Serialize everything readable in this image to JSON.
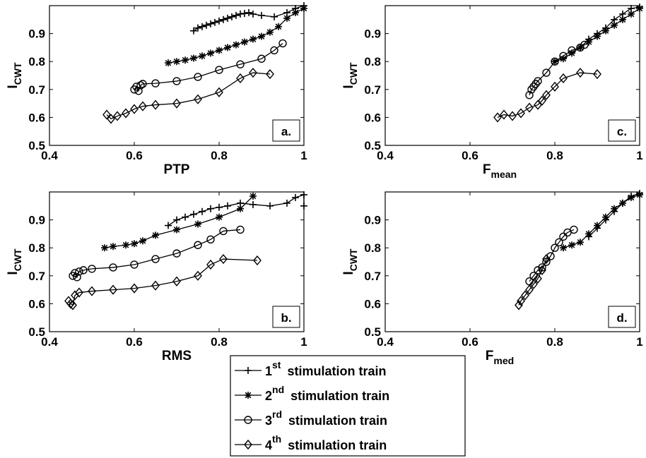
{
  "chart_data": [
    {
      "type": "line",
      "panel_label": "a.",
      "xlabel": "PTP",
      "xlabel_sub": "",
      "ylabel": "I",
      "ylabel_sub": "CWT",
      "xlim": [
        0.4,
        1.0
      ],
      "ylim": [
        0.5,
        1.0
      ],
      "xticks": [
        "0.4",
        "0.6",
        "0.8",
        "1"
      ],
      "yticks": [
        "0.5",
        "0.6",
        "0.7",
        "0.8",
        "0.9"
      ],
      "grid": false,
      "series": [
        {
          "name": "1st stimulation train",
          "marker": "plus",
          "x": [
            0.74,
            0.75,
            0.76,
            0.77,
            0.78,
            0.79,
            0.8,
            0.81,
            0.82,
            0.83,
            0.84,
            0.85,
            0.86,
            0.87,
            0.88,
            0.9,
            0.93,
            0.96,
            0.98,
            1.0
          ],
          "y": [
            0.91,
            0.92,
            0.925,
            0.93,
            0.935,
            0.94,
            0.945,
            0.95,
            0.955,
            0.96,
            0.965,
            0.97,
            0.972,
            0.975,
            0.97,
            0.965,
            0.96,
            0.975,
            0.99,
            1.0
          ]
        },
        {
          "name": "2nd stimulation train",
          "marker": "asterisk",
          "x": [
            0.68,
            0.7,
            0.72,
            0.74,
            0.76,
            0.78,
            0.8,
            0.82,
            0.84,
            0.86,
            0.88,
            0.9,
            0.92,
            0.94,
            0.96,
            0.98,
            1.0
          ],
          "y": [
            0.795,
            0.8,
            0.805,
            0.812,
            0.82,
            0.83,
            0.84,
            0.85,
            0.86,
            0.87,
            0.88,
            0.89,
            0.905,
            0.925,
            0.955,
            0.975,
            0.99
          ]
        },
        {
          "name": "3rd stimulation train",
          "marker": "circle",
          "x": [
            0.6,
            0.605,
            0.61,
            0.615,
            0.62,
            0.65,
            0.7,
            0.75,
            0.8,
            0.85,
            0.9,
            0.93,
            0.95
          ],
          "y": [
            0.7,
            0.71,
            0.695,
            0.715,
            0.72,
            0.722,
            0.73,
            0.745,
            0.77,
            0.79,
            0.81,
            0.84,
            0.865
          ]
        },
        {
          "name": "4th stimulation train",
          "marker": "diamond",
          "x": [
            0.535,
            0.545,
            0.56,
            0.58,
            0.6,
            0.62,
            0.65,
            0.7,
            0.75,
            0.8,
            0.85,
            0.88,
            0.92
          ],
          "y": [
            0.61,
            0.595,
            0.605,
            0.615,
            0.63,
            0.64,
            0.645,
            0.65,
            0.665,
            0.69,
            0.74,
            0.76,
            0.755
          ]
        }
      ]
    },
    {
      "type": "line",
      "panel_label": "c.",
      "xlabel": "F",
      "xlabel_sub": "mean",
      "ylabel": "I",
      "ylabel_sub": "CWT",
      "xlim": [
        0.4,
        1.0
      ],
      "ylim": [
        0.5,
        1.0
      ],
      "xticks": [
        "0.4",
        "0.6",
        "0.8",
        "1"
      ],
      "yticks": [
        "0.5",
        "0.6",
        "0.7",
        "0.8",
        "0.9"
      ],
      "grid": false,
      "series": [
        {
          "name": "1st stimulation train",
          "marker": "plus",
          "x": [
            0.86,
            0.88,
            0.9,
            0.92,
            0.94,
            0.96,
            0.98,
            1.0
          ],
          "y": [
            0.85,
            0.88,
            0.9,
            0.92,
            0.95,
            0.97,
            0.99,
            0.995
          ]
        },
        {
          "name": "2nd stimulation train",
          "marker": "asterisk",
          "x": [
            0.8,
            0.82,
            0.84,
            0.86,
            0.88,
            0.9,
            0.92,
            0.94,
            0.96,
            0.98,
            1.0
          ],
          "y": [
            0.8,
            0.81,
            0.83,
            0.85,
            0.87,
            0.89,
            0.91,
            0.93,
            0.95,
            0.97,
            0.99
          ]
        },
        {
          "name": "3rd stimulation train",
          "marker": "circle",
          "x": [
            0.74,
            0.745,
            0.75,
            0.755,
            0.76,
            0.78,
            0.8,
            0.82,
            0.84,
            0.86,
            0.87
          ],
          "y": [
            0.68,
            0.7,
            0.71,
            0.72,
            0.73,
            0.76,
            0.8,
            0.82,
            0.84,
            0.85,
            0.86
          ]
        },
        {
          "name": "4th stimulation train",
          "marker": "diamond",
          "x": [
            0.665,
            0.68,
            0.7,
            0.72,
            0.74,
            0.76,
            0.77,
            0.78,
            0.8,
            0.82,
            0.86,
            0.9
          ],
          "y": [
            0.6,
            0.61,
            0.605,
            0.615,
            0.635,
            0.645,
            0.66,
            0.68,
            0.71,
            0.74,
            0.76,
            0.755
          ]
        }
      ]
    },
    {
      "type": "line",
      "panel_label": "b.",
      "xlabel": "RMS",
      "xlabel_sub": "",
      "ylabel": "I",
      "ylabel_sub": "CWT",
      "xlim": [
        0.4,
        1.0
      ],
      "ylim": [
        0.5,
        1.0
      ],
      "xticks": [
        "0.4",
        "0.6",
        "0.8",
        "1"
      ],
      "yticks": [
        "0.5",
        "0.6",
        "0.7",
        "0.8",
        "0.9"
      ],
      "grid": false,
      "series": [
        {
          "name": "1st stimulation train",
          "marker": "plus",
          "x": [
            0.68,
            0.7,
            0.72,
            0.74,
            0.76,
            0.78,
            0.8,
            0.82,
            0.85,
            0.88,
            0.92,
            0.96,
            0.98,
            1.0,
            1.0
          ],
          "y": [
            0.88,
            0.9,
            0.91,
            0.92,
            0.93,
            0.94,
            0.945,
            0.95,
            0.96,
            0.955,
            0.95,
            0.96,
            0.98,
            0.99,
            0.95
          ]
        },
        {
          "name": "2nd stimulation train",
          "marker": "asterisk",
          "x": [
            0.53,
            0.55,
            0.58,
            0.6,
            0.62,
            0.65,
            0.7,
            0.75,
            0.8,
            0.85,
            0.88
          ],
          "y": [
            0.8,
            0.805,
            0.81,
            0.815,
            0.825,
            0.845,
            0.865,
            0.885,
            0.91,
            0.94,
            0.985
          ]
        },
        {
          "name": "3rd stimulation train",
          "marker": "circle",
          "x": [
            0.455,
            0.46,
            0.465,
            0.47,
            0.48,
            0.5,
            0.55,
            0.6,
            0.65,
            0.7,
            0.75,
            0.78,
            0.81,
            0.85
          ],
          "y": [
            0.7,
            0.71,
            0.695,
            0.715,
            0.72,
            0.725,
            0.73,
            0.74,
            0.76,
            0.78,
            0.81,
            0.83,
            0.86,
            0.865
          ]
        },
        {
          "name": "4th stimulation train",
          "marker": "diamond",
          "x": [
            0.445,
            0.45,
            0.455,
            0.46,
            0.47,
            0.5,
            0.55,
            0.6,
            0.65,
            0.7,
            0.75,
            0.78,
            0.81,
            0.89
          ],
          "y": [
            0.61,
            0.6,
            0.595,
            0.63,
            0.64,
            0.645,
            0.65,
            0.655,
            0.665,
            0.68,
            0.7,
            0.74,
            0.76,
            0.755
          ]
        }
      ]
    },
    {
      "type": "line",
      "panel_label": "d.",
      "xlabel": "F",
      "xlabel_sub": "med",
      "ylabel": "I",
      "ylabel_sub": "CWT",
      "xlim": [
        0.4,
        1.0
      ],
      "ylim": [
        0.5,
        1.0
      ],
      "xticks": [
        "0.4",
        "0.6",
        "0.8",
        "1"
      ],
      "yticks": [
        "0.5",
        "0.6",
        "0.7",
        "0.8",
        "0.9"
      ],
      "grid": false,
      "series": [
        {
          "name": "1st stimulation train",
          "marker": "plus",
          "x": [
            0.88,
            0.9,
            0.92,
            0.94,
            0.96,
            0.98,
            1.0
          ],
          "y": [
            0.84,
            0.87,
            0.9,
            0.93,
            0.96,
            0.985,
            0.995
          ]
        },
        {
          "name": "2nd stimulation train",
          "marker": "asterisk",
          "x": [
            0.82,
            0.84,
            0.86,
            0.88,
            0.9,
            0.92,
            0.94,
            0.96,
            0.98,
            1.0
          ],
          "y": [
            0.8,
            0.81,
            0.82,
            0.85,
            0.88,
            0.91,
            0.94,
            0.96,
            0.98,
            0.99
          ]
        },
        {
          "name": "3rd stimulation train",
          "marker": "circle",
          "x": [
            0.74,
            0.75,
            0.76,
            0.77,
            0.78,
            0.79,
            0.8,
            0.81,
            0.82,
            0.83,
            0.845
          ],
          "y": [
            0.68,
            0.7,
            0.72,
            0.73,
            0.75,
            0.77,
            0.8,
            0.82,
            0.84,
            0.855,
            0.865
          ]
        },
        {
          "name": "4th stimulation train",
          "marker": "diamond",
          "x": [
            0.715,
            0.72,
            0.73,
            0.74,
            0.75,
            0.76,
            0.77,
            0.78
          ],
          "y": [
            0.595,
            0.61,
            0.63,
            0.65,
            0.67,
            0.69,
            0.72,
            0.76
          ]
        }
      ]
    }
  ],
  "legend": [
    {
      "ordinal": "1",
      "sup": "st",
      "text": "stimulation train",
      "marker": "plus"
    },
    {
      "ordinal": "2",
      "sup": "nd",
      "text": "stimulation train",
      "marker": "asterisk"
    },
    {
      "ordinal": "3",
      "sup": "rd",
      "text": "stimulation train",
      "marker": "circle"
    },
    {
      "ordinal": "4",
      "sup": "th",
      "text": "stimulation train",
      "marker": "diamond"
    }
  ]
}
